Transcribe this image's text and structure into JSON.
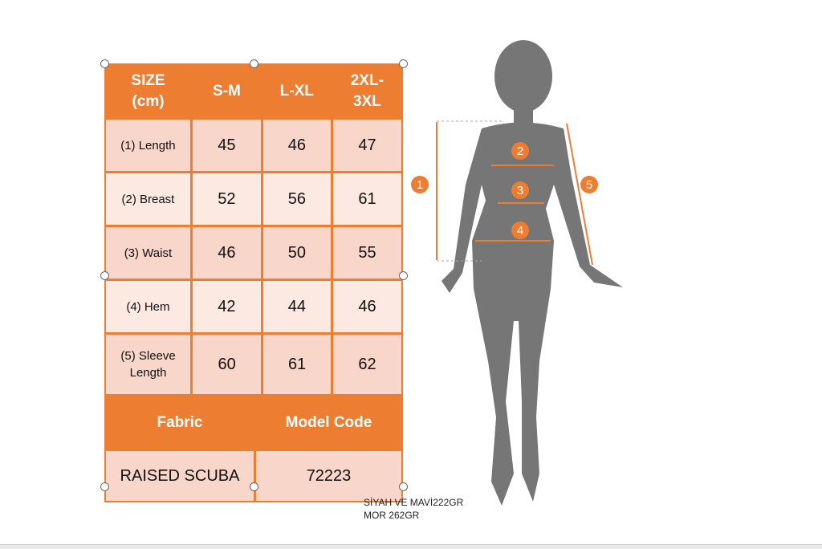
{
  "table": {
    "header": [
      "SIZE (cm)",
      "S-M",
      "L-XL",
      "2XL-3XL"
    ],
    "rows": [
      {
        "label": "(1) Length",
        "values": [
          "45",
          "46",
          "47"
        ]
      },
      {
        "label": "(2) Breast",
        "values": [
          "52",
          "56",
          "61"
        ]
      },
      {
        "label": "(3) Waist",
        "values": [
          "46",
          "50",
          "55"
        ]
      },
      {
        "label": "(4) Hem",
        "values": [
          "42",
          "44",
          "46"
        ]
      },
      {
        "label": "(5) Sleeve Length",
        "values": [
          "60",
          "61",
          "62"
        ]
      }
    ],
    "fabric_label": "Fabric",
    "model_code_label": "Model Code",
    "fabric_value": "RAISED SCUBA",
    "model_code_value": "72223"
  },
  "figure": {
    "markers": [
      "1",
      "2",
      "3",
      "4",
      "5"
    ]
  },
  "note": {
    "line1": "SİYAH VE MAVİ222GR",
    "line2": "MOR 262GR"
  },
  "colors": {
    "accent": "#ed7d31",
    "row_dark": "#f8d6c9",
    "row_light": "#fbe9e2",
    "silhouette": "#767676"
  }
}
